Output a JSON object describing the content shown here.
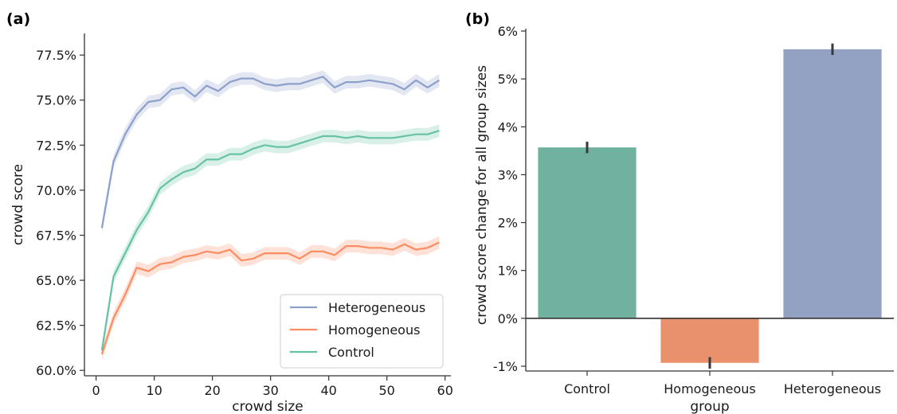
{
  "panels": {
    "left_label": "(a)",
    "right_label": "(b)"
  },
  "colors": {
    "Heterogeneous": "#8da0cb",
    "Homogeneous": "#fc8d62",
    "Control": "#66c2a5",
    "bar_Control": "#70b29f",
    "bar_Homogeneous": "#e8916c",
    "bar_Heterogeneous": "#93a2c2"
  },
  "chart_data": [
    {
      "type": "line",
      "xlabel": "crowd size",
      "ylabel": "crowd score",
      "xlim": [
        -2,
        61
      ],
      "ylim": [
        59.7,
        78.7
      ],
      "x_ticks": [
        0,
        10,
        20,
        30,
        40,
        50,
        60
      ],
      "x_tick_labels": [
        "0",
        "10",
        "20",
        "30",
        "40",
        "50",
        "60"
      ],
      "y_ticks": [
        60,
        62.5,
        65,
        67.5,
        70,
        72.5,
        75,
        77.5
      ],
      "y_tick_labels": [
        "60.0%",
        "62.5%",
        "65.0%",
        "67.5%",
        "70.0%",
        "72.5%",
        "75.0%",
        "77.5%"
      ],
      "legend_position": "lower-right",
      "x": [
        1,
        3,
        5,
        7,
        9,
        11,
        13,
        15,
        17,
        19,
        21,
        23,
        25,
        27,
        29,
        31,
        33,
        35,
        37,
        39,
        41,
        43,
        45,
        47,
        49,
        51,
        53,
        55,
        57,
        59
      ],
      "series": [
        {
          "name": "Heterogeneous",
          "ci": 0.35,
          "values": [
            67.9,
            71.6,
            73.1,
            74.2,
            74.9,
            75.0,
            75.6,
            75.7,
            75.2,
            75.8,
            75.5,
            76.0,
            76.2,
            76.2,
            75.9,
            75.8,
            75.9,
            75.9,
            76.1,
            76.3,
            75.7,
            76.0,
            76.0,
            76.1,
            76.0,
            75.9,
            75.6,
            76.1,
            75.7,
            76.1
          ]
        },
        {
          "name": "Homogeneous",
          "ci": 0.35,
          "values": [
            60.9,
            62.9,
            64.2,
            65.7,
            65.5,
            65.9,
            66.0,
            66.3,
            66.4,
            66.6,
            66.5,
            66.7,
            66.1,
            66.2,
            66.5,
            66.5,
            66.5,
            66.2,
            66.6,
            66.6,
            66.4,
            66.9,
            66.9,
            66.8,
            66.8,
            66.7,
            67.0,
            66.7,
            66.8,
            67.1
          ]
        },
        {
          "name": "Control",
          "ci": 0.35,
          "values": [
            61.1,
            65.2,
            66.5,
            67.8,
            68.8,
            70.1,
            70.6,
            71.0,
            71.2,
            71.7,
            71.7,
            72.0,
            72.0,
            72.3,
            72.5,
            72.4,
            72.4,
            72.6,
            72.8,
            73.0,
            73.0,
            72.9,
            73.0,
            72.9,
            72.9,
            72.9,
            73.0,
            73.1,
            73.1,
            73.3
          ]
        }
      ]
    },
    {
      "type": "bar",
      "xlabel": "group",
      "ylabel": "crowd score change for all group sizes",
      "ylim": [
        -1.1,
        6.05
      ],
      "y_ticks": [
        -1,
        0,
        1,
        2,
        3,
        4,
        5,
        6
      ],
      "y_tick_labels": [
        "-1%",
        "0%",
        "1%",
        "2%",
        "3%",
        "4%",
        "5%",
        "6%"
      ],
      "categories": [
        "Control",
        "Homogeneous",
        "Heterogeneous"
      ],
      "values": [
        3.57,
        -0.93,
        5.62
      ],
      "error": [
        0.12,
        0.12,
        0.12
      ]
    }
  ]
}
